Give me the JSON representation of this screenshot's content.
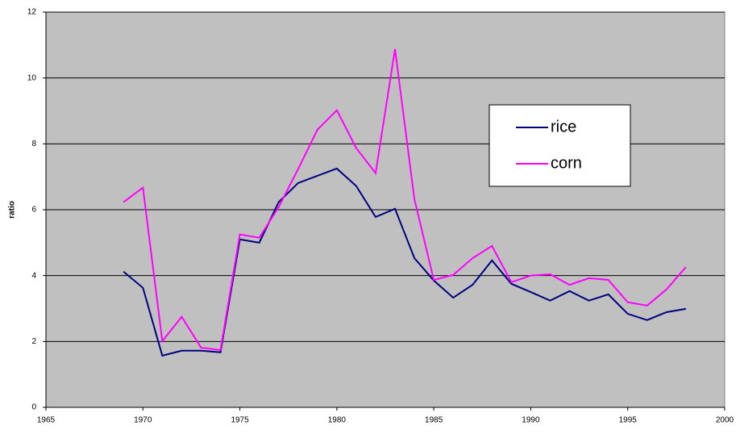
{
  "chart_data": {
    "type": "line",
    "y_label": "ratio",
    "x": [
      1969,
      1970,
      1971,
      1972,
      1973,
      1974,
      1975,
      1976,
      1977,
      1978,
      1979,
      1980,
      1981,
      1982,
      1983,
      1984,
      1985,
      1986,
      1987,
      1988,
      1989,
      1990,
      1991,
      1992,
      1993,
      1994,
      1995,
      1996,
      1997,
      1998
    ],
    "series": [
      {
        "name": "rice",
        "color": "#000080",
        "values": [
          4.12,
          3.63,
          1.57,
          1.72,
          1.72,
          1.67,
          5.1,
          5.0,
          6.23,
          6.81,
          7.03,
          7.25,
          6.72,
          5.78,
          6.03,
          4.53,
          3.85,
          3.33,
          3.72,
          4.46,
          3.75,
          3.5,
          3.24,
          3.53,
          3.24,
          3.43,
          2.84,
          2.65,
          2.89,
          2.99
        ]
      },
      {
        "name": "corn",
        "color": "#ff00ff",
        "values": [
          6.23,
          6.67,
          2.01,
          2.75,
          1.81,
          1.74,
          5.25,
          5.15,
          6.08,
          7.23,
          8.43,
          9.02,
          7.87,
          7.11,
          10.88,
          6.32,
          3.87,
          4.02,
          4.53,
          4.9,
          3.8,
          4.0,
          4.04,
          3.72,
          3.92,
          3.87,
          3.19,
          3.09,
          3.58,
          4.26
        ]
      }
    ],
    "xlim": [
      1965,
      2000
    ],
    "xticks": [
      1965,
      1970,
      1975,
      1980,
      1985,
      1990,
      1995,
      2000
    ],
    "ylim": [
      0,
      12
    ],
    "yticks": [
      0,
      2,
      4,
      6,
      8,
      10,
      12
    ],
    "grid": true,
    "plot_background": "#c0c0c0"
  }
}
